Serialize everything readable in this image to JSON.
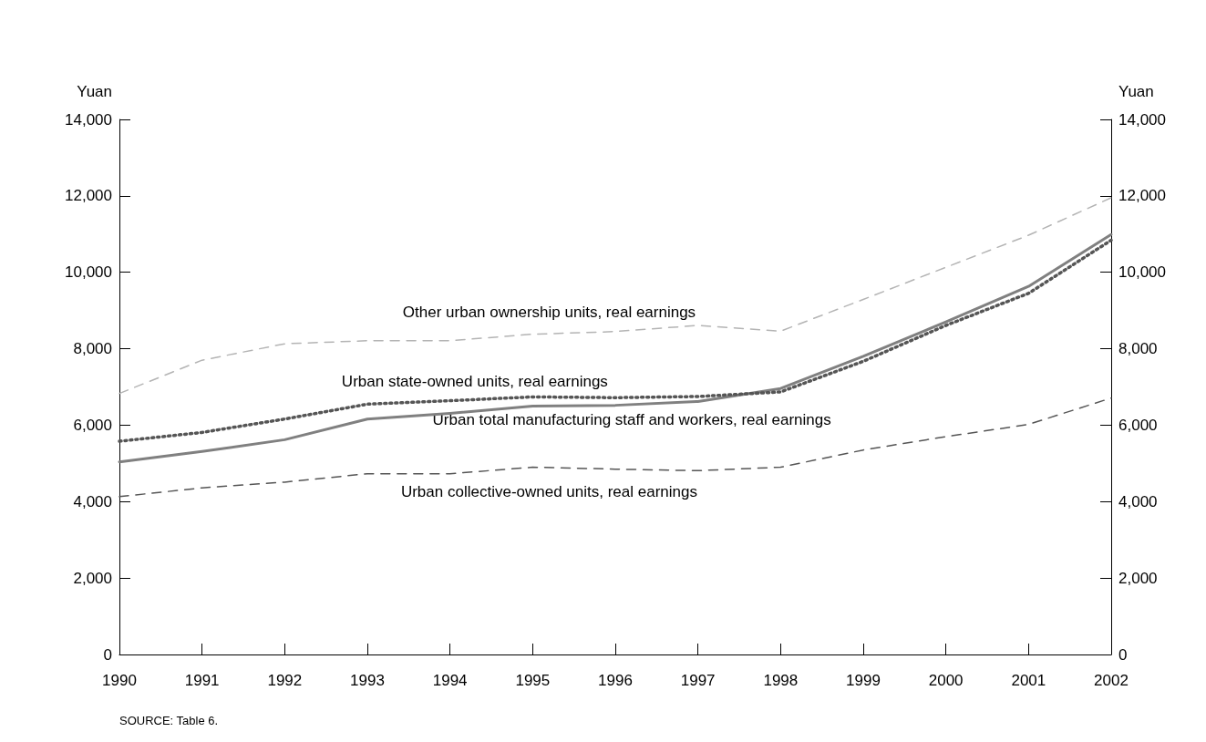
{
  "chart_data": {
    "type": "line",
    "ylabel": "Yuan",
    "y2label": "Yuan",
    "x": [
      1990,
      1991,
      1992,
      1993,
      1994,
      1995,
      1996,
      1997,
      1998,
      1999,
      2000,
      2001,
      2002
    ],
    "xlim": [
      1990,
      2002
    ],
    "xticks": [
      1990,
      1991,
      1992,
      1993,
      1994,
      1995,
      1996,
      1997,
      1998,
      1999,
      2000,
      2001,
      2002
    ],
    "ylim": [
      0,
      14000
    ],
    "yticks": [
      {
        "value": 0,
        "label": "0"
      },
      {
        "value": 2000,
        "label": "2,000"
      },
      {
        "value": 4000,
        "label": "4,000"
      },
      {
        "value": 6000,
        "label": "6,000"
      },
      {
        "value": 8000,
        "label": "8,000"
      },
      {
        "value": 10000,
        "label": "10,000"
      },
      {
        "value": 12000,
        "label": "12,000"
      },
      {
        "value": 14000,
        "label": "14,000"
      }
    ],
    "y2lim": [
      0,
      14000
    ],
    "y2ticks": [
      {
        "value": 0,
        "label": "0"
      },
      {
        "value": 2000,
        "label": "2,000"
      },
      {
        "value": 4000,
        "label": "4,000"
      },
      {
        "value": 6000,
        "label": "6,000"
      },
      {
        "value": 8000,
        "label": "8,000"
      },
      {
        "value": 10000,
        "label": "10,000"
      },
      {
        "value": 12000,
        "label": "12,000"
      },
      {
        "value": 14000,
        "label": "14,000"
      }
    ],
    "grid": false,
    "legend": false,
    "marker": "none",
    "series": [
      {
        "name": "Other urban ownership units, real earnings",
        "color": "#b4b4b4",
        "line_style": "dashed",
        "values": [
          6830,
          7700,
          8130,
          8210,
          8210,
          8380,
          8450,
          8610,
          8460,
          9290,
          10130,
          10970,
          11950
        ]
      },
      {
        "name": "Urban state-owned units, real earnings",
        "color": "#555555",
        "line_style": "dotted",
        "values": [
          5580,
          5810,
          6160,
          6550,
          6640,
          6740,
          6720,
          6750,
          6870,
          7670,
          8610,
          9450,
          10840
        ]
      },
      {
        "name": "Urban total manufacturing staff and workers, real earnings",
        "color": "#808080",
        "line_style": "solid",
        "values": [
          5040,
          5310,
          5620,
          6160,
          6310,
          6500,
          6520,
          6620,
          6960,
          7800,
          8700,
          9630,
          10990
        ]
      },
      {
        "name": "Urban collective-owned units, real earnings",
        "color": "#555555",
        "line_style": "dashed",
        "values": [
          4130,
          4360,
          4510,
          4730,
          4730,
          4900,
          4850,
          4810,
          4900,
          5350,
          5700,
          6020,
          6710
        ]
      }
    ],
    "annotations": [
      "SOURCE: Table 6."
    ]
  }
}
